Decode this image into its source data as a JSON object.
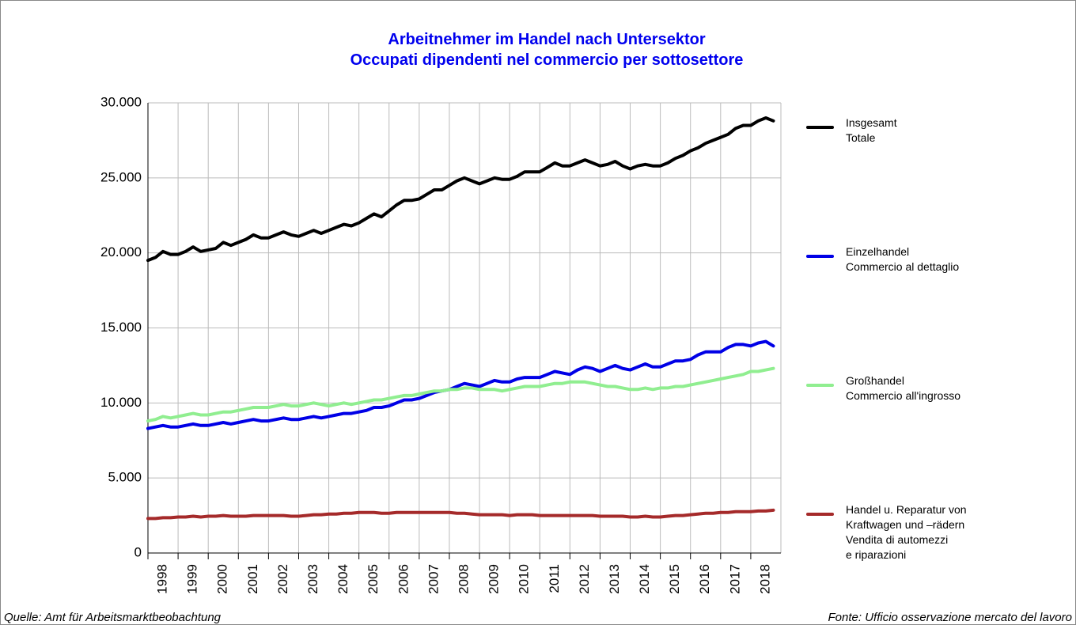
{
  "chart_data": {
    "type": "line",
    "title": "Arbeitnehmer im Handel nach Untersektor\nOccupati dipendenti nel commercio per sottosettore",
    "sources": [
      "Quelle: Amt für Arbeitsmarktbeobachtung",
      "Fonte: Ufficio osservazione mercato del lavoro"
    ],
    "x": [
      1998,
      1998.25,
      1998.5,
      1998.75,
      1999,
      1999.25,
      1999.5,
      1999.75,
      2000,
      2000.25,
      2000.5,
      2000.75,
      2001,
      2001.25,
      2001.5,
      2001.75,
      2002,
      2002.25,
      2002.5,
      2002.75,
      2003,
      2003.25,
      2003.5,
      2003.75,
      2004,
      2004.25,
      2004.5,
      2004.75,
      2005,
      2005.25,
      2005.5,
      2005.75,
      2006,
      2006.25,
      2006.5,
      2006.75,
      2007,
      2007.25,
      2007.5,
      2007.75,
      2008,
      2008.25,
      2008.5,
      2008.75,
      2009,
      2009.25,
      2009.5,
      2009.75,
      2010,
      2010.25,
      2010.5,
      2010.75,
      2011,
      2011.25,
      2011.5,
      2011.75,
      2012,
      2012.25,
      2012.5,
      2012.75,
      2013,
      2013.25,
      2013.5,
      2013.75,
      2014,
      2014.25,
      2014.5,
      2014.75,
      2015,
      2015.25,
      2015.5,
      2015.75,
      2016,
      2016.25,
      2016.5,
      2016.75,
      2017,
      2017.25,
      2017.5,
      2017.75,
      2018,
      2018.25,
      2018.5,
      2018.75
    ],
    "xlim": [
      1998,
      2019
    ],
    "xticks": [
      1998,
      1999,
      2000,
      2001,
      2002,
      2003,
      2004,
      2005,
      2006,
      2007,
      2008,
      2009,
      2010,
      2011,
      2012,
      2013,
      2014,
      2015,
      2016,
      2017,
      2018
    ],
    "ylim": [
      0,
      30000
    ],
    "yticks": [
      0,
      {
        "value": 5000,
        "label": "5.000"
      },
      {
        "value": 10000,
        "label": "10.000"
      },
      {
        "value": 15000,
        "label": "15.000"
      },
      {
        "value": 20000,
        "label": "20.000"
      },
      {
        "value": 25000,
        "label": "25.000"
      },
      {
        "value": 30000,
        "label": "30.000"
      }
    ],
    "grid": true,
    "series": [
      {
        "name": "Insgesamt\nTotale",
        "color": "#000000",
        "values": [
          19500,
          19700,
          20100,
          19900,
          19900,
          20100,
          20400,
          20100,
          20200,
          20300,
          20700,
          20500,
          20700,
          20900,
          21200,
          21000,
          21000,
          21200,
          21400,
          21200,
          21100,
          21300,
          21500,
          21300,
          21500,
          21700,
          21900,
          21800,
          22000,
          22300,
          22600,
          22400,
          22800,
          23200,
          23500,
          23500,
          23600,
          23900,
          24200,
          24200,
          24500,
          24800,
          25000,
          24800,
          24600,
          24800,
          25000,
          24900,
          24900,
          25100,
          25400,
          25400,
          25400,
          25700,
          26000,
          25800,
          25800,
          26000,
          26200,
          26000,
          25800,
          25900,
          26100,
          25800,
          25600,
          25800,
          25900,
          25800,
          25800,
          26000,
          26300,
          26500,
          26800,
          27000,
          27300,
          27500,
          27700,
          27900,
          28300,
          28500,
          28500,
          28800,
          29000,
          28800
        ]
      },
      {
        "name": "Einzelhandel\nCommercio al dettaglio",
        "color": "#0000e6",
        "values": [
          8300,
          8400,
          8500,
          8400,
          8400,
          8500,
          8600,
          8500,
          8500,
          8600,
          8700,
          8600,
          8700,
          8800,
          8900,
          8800,
          8800,
          8900,
          9000,
          8900,
          8900,
          9000,
          9100,
          9000,
          9100,
          9200,
          9300,
          9300,
          9400,
          9500,
          9700,
          9700,
          9800,
          10000,
          10200,
          10200,
          10300,
          10500,
          10700,
          10800,
          10900,
          11100,
          11300,
          11200,
          11100,
          11300,
          11500,
          11400,
          11400,
          11600,
          11700,
          11700,
          11700,
          11900,
          12100,
          12000,
          11900,
          12200,
          12400,
          12300,
          12100,
          12300,
          12500,
          12300,
          12200,
          12400,
          12600,
          12400,
          12400,
          12600,
          12800,
          12800,
          12900,
          13200,
          13400,
          13400,
          13400,
          13700,
          13900,
          13900,
          13800,
          14000,
          14100,
          13800
        ]
      },
      {
        "name": "Großhandel\nCommercio all'ingrosso",
        "color": "#90ee90",
        "values": [
          8800,
          8900,
          9100,
          9000,
          9100,
          9200,
          9300,
          9200,
          9200,
          9300,
          9400,
          9400,
          9500,
          9600,
          9700,
          9700,
          9700,
          9800,
          9900,
          9800,
          9800,
          9900,
          10000,
          9900,
          9800,
          9900,
          10000,
          9900,
          10000,
          10100,
          10200,
          10200,
          10300,
          10400,
          10500,
          10500,
          10600,
          10700,
          10800,
          10800,
          10900,
          10900,
          11000,
          11000,
          10900,
          10900,
          10900,
          10800,
          10900,
          11000,
          11100,
          11100,
          11100,
          11200,
          11300,
          11300,
          11400,
          11400,
          11400,
          11300,
          11200,
          11100,
          11100,
          11000,
          10900,
          10900,
          11000,
          10900,
          11000,
          11000,
          11100,
          11100,
          11200,
          11300,
          11400,
          11500,
          11600,
          11700,
          11800,
          11900,
          12100,
          12100,
          12200,
          12300
        ]
      },
      {
        "name": "Handel u. Reparatur von\nKraftwagen und –rädern\nVendita di automezzi\ne riparazioni",
        "color": "#a52a2a",
        "values": [
          2300,
          2300,
          2350,
          2350,
          2400,
          2400,
          2450,
          2400,
          2450,
          2450,
          2500,
          2450,
          2450,
          2450,
          2500,
          2500,
          2500,
          2500,
          2500,
          2450,
          2450,
          2500,
          2550,
          2550,
          2600,
          2600,
          2650,
          2650,
          2700,
          2700,
          2700,
          2650,
          2650,
          2700,
          2700,
          2700,
          2700,
          2700,
          2700,
          2700,
          2700,
          2650,
          2650,
          2600,
          2550,
          2550,
          2550,
          2550,
          2500,
          2550,
          2550,
          2550,
          2500,
          2500,
          2500,
          2500,
          2500,
          2500,
          2500,
          2500,
          2450,
          2450,
          2450,
          2450,
          2400,
          2400,
          2450,
          2400,
          2400,
          2450,
          2500,
          2500,
          2550,
          2600,
          2650,
          2650,
          2700,
          2700,
          2750,
          2750,
          2750,
          2800,
          2800,
          2850
        ]
      }
    ]
  }
}
